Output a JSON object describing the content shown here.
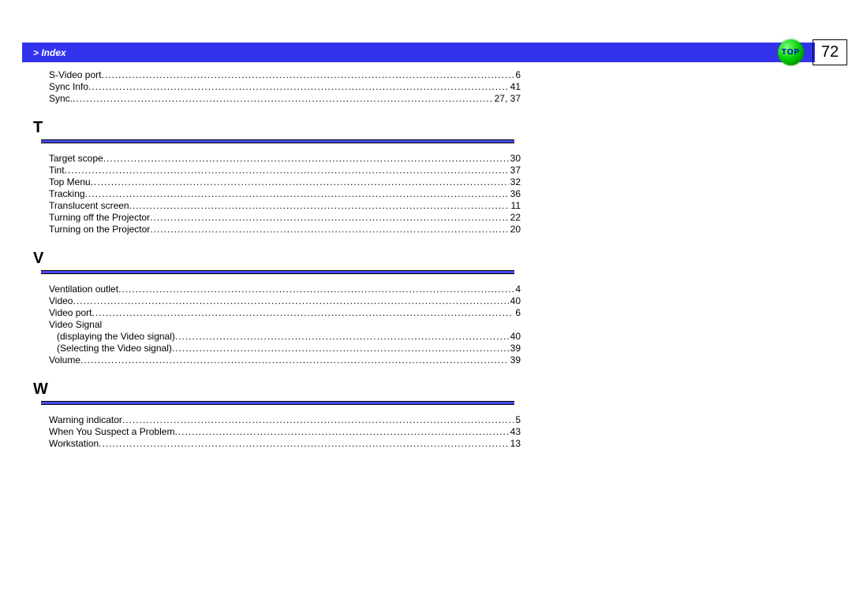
{
  "header": {
    "title": "> Index"
  },
  "topButton": {
    "label": "TOP"
  },
  "pageNumber": "72",
  "colors": {
    "header_bg": "#3333ee",
    "rule_bg": "#4a4aee",
    "text": "#000000",
    "page_bg": "#ffffff",
    "top_button_text": "#0000cc"
  },
  "initialEntries": [
    {
      "label": "S-Video port",
      "page": "6"
    },
    {
      "label": "Sync Info",
      "page": "41"
    },
    {
      "label": "Sync.",
      "page": "27, 37"
    }
  ],
  "sections": [
    {
      "letter": "T",
      "entries": [
        {
          "label": "Target scope",
          "page": "30"
        },
        {
          "label": "Tint",
          "page": "37"
        },
        {
          "label": "Top Menu",
          "page": "32"
        },
        {
          "label": "Tracking",
          "page": "36"
        },
        {
          "label": "Translucent screen",
          "page": "11"
        },
        {
          "label": "Turning off the Projector",
          "page": "22"
        },
        {
          "label": "Turning on the Projector",
          "page": "20"
        }
      ]
    },
    {
      "letter": "V",
      "entries": [
        {
          "label": "Ventilation outlet",
          "page": "4"
        },
        {
          "label": "Video",
          "page": "40"
        },
        {
          "label": "Video port",
          "page": "6"
        },
        {
          "label": "Video Signal",
          "no_page": true
        },
        {
          "label": "(displaying the Video signal)",
          "page": "40",
          "sub": true
        },
        {
          "label": "(Selecting the Video signal)",
          "page": "39",
          "sub": true
        },
        {
          "label": "Volume",
          "page": "39"
        }
      ]
    },
    {
      "letter": "W",
      "entries": [
        {
          "label": "Warning indicator",
          "page": "5"
        },
        {
          "label": "When You Suspect a Problem",
          "page": "43"
        },
        {
          "label": "Workstation",
          "page": "13"
        }
      ]
    }
  ]
}
